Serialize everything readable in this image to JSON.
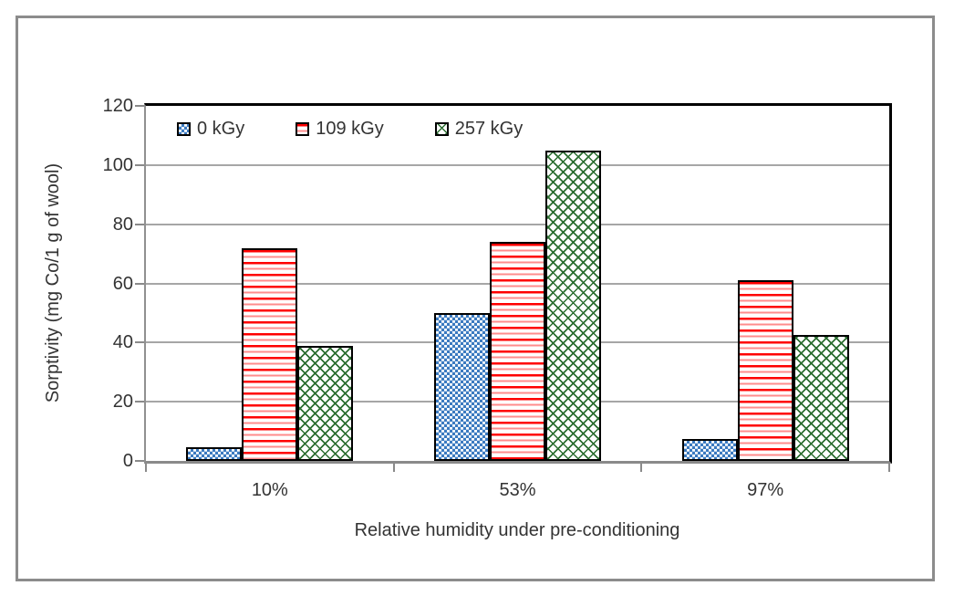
{
  "chart_data": {
    "type": "bar",
    "title": "",
    "categories": [
      "10%",
      "53%",
      "97%"
    ],
    "series": [
      {
        "name": "0 kGy",
        "values": [
          4.5,
          50,
          7.5
        ],
        "pattern": "blue-dotted",
        "color": "#3b7ac0"
      },
      {
        "name": "109 kGy",
        "values": [
          72,
          74,
          61
        ],
        "pattern": "red-horizontal-lines",
        "color": "#ff0000"
      },
      {
        "name": "257 kGy",
        "values": [
          39,
          105,
          42.5
        ],
        "pattern": "green-diagonal-crosshatch",
        "color": "#2c6e31"
      }
    ],
    "xlabel": "Relative humidity under pre-conditioning",
    "ylabel": "Sorptivity (mg Co/1 g of wool)",
    "ylim": [
      0,
      120
    ],
    "yticks": [
      0,
      20,
      40,
      60,
      80,
      100,
      120
    ],
    "grid": true,
    "legend_position": "top-left-inside"
  },
  "colors": {
    "background": "#ffffff",
    "outer_border": "#8c8c8c",
    "plot_border": "#000000",
    "axis": "#8a8a8a",
    "gridline": "#a6a6a6",
    "text": "#333333"
  }
}
